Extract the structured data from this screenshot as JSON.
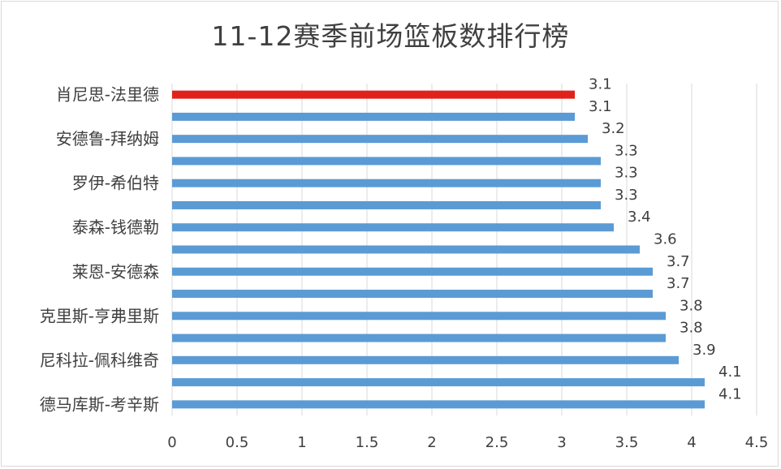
{
  "chart_data": {
    "type": "bar",
    "orientation": "horizontal",
    "title": "11-12赛季前场篮板数排行榜",
    "categories": [
      "肖尼思-法里德",
      "",
      "安德鲁-拜纳姆",
      "",
      "罗伊-希伯特",
      "",
      "泰森-钱德勒",
      "",
      "莱恩-安德森",
      "",
      "克里斯-亨弗里斯",
      "",
      "尼科拉-佩科维奇",
      "",
      "德马库斯-考辛斯"
    ],
    "values": [
      3.1,
      3.1,
      3.2,
      3.3,
      3.3,
      3.3,
      3.4,
      3.6,
      3.7,
      3.7,
      3.8,
      3.8,
      3.9,
      4.1,
      4.1
    ],
    "data_labels": [
      "3.1",
      "3.1",
      "3.2",
      "3.3",
      "3.3",
      "3.3",
      "3.4",
      "3.6",
      "3.7",
      "3.7",
      "3.8",
      "3.8",
      "3.9",
      "4.1",
      "4.1"
    ],
    "highlight_index": 0,
    "xlim": [
      0,
      4.5
    ],
    "x_ticks": [
      "0",
      "0.5",
      "1",
      "1.5",
      "2",
      "2.5",
      "3",
      "3.5",
      "4",
      "4.5"
    ],
    "gridlines": true,
    "colors": {
      "bar": "#5b9bd5",
      "highlight": "#e0221b",
      "grid": "#d9d9d9",
      "text": "#404040"
    }
  }
}
